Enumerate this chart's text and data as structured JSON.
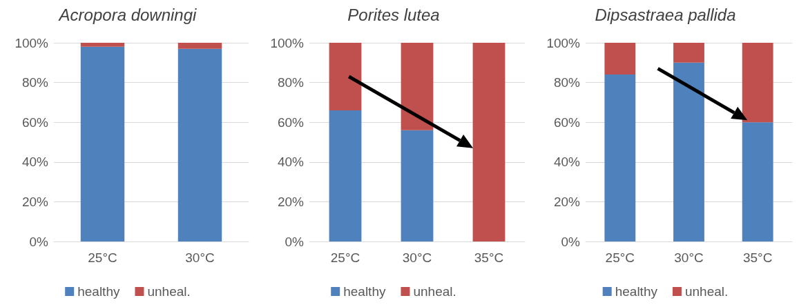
{
  "chart_data": [
    {
      "type": "bar",
      "title": "Acropora downingi",
      "stacked": true,
      "categories": [
        "25°C",
        "30°C"
      ],
      "series": [
        {
          "name": "healthy",
          "color": "#4f81bd",
          "values": [
            98,
            97
          ]
        },
        {
          "name": "unheal.",
          "color": "#c0504d",
          "values": [
            2,
            3
          ]
        }
      ],
      "ylim": [
        0,
        100
      ],
      "yticks": [
        {
          "value": 0,
          "label": "0%"
        },
        {
          "value": 20,
          "label": "20%"
        },
        {
          "value": 40,
          "label": "40%"
        },
        {
          "value": 60,
          "label": "60%"
        },
        {
          "value": 80,
          "label": "80%"
        },
        {
          "value": 100,
          "label": "100%"
        }
      ],
      "grid": "y",
      "legend": "bottom"
    },
    {
      "type": "bar",
      "title": "Porites lutea",
      "stacked": true,
      "categories": [
        "25°C",
        "30°C",
        "35°C"
      ],
      "series": [
        {
          "name": "healthy",
          "color": "#4f81bd",
          "values": [
            66,
            56,
            0
          ]
        },
        {
          "name": "unheal.",
          "color": "#c0504d",
          "values": [
            34,
            44,
            100
          ]
        }
      ],
      "ylim": [
        0,
        100
      ],
      "yticks": [
        {
          "value": 0,
          "label": "0%"
        },
        {
          "value": 20,
          "label": "20%"
        },
        {
          "value": 40,
          "label": "40%"
        },
        {
          "value": 60,
          "label": "60%"
        },
        {
          "value": 80,
          "label": "80%"
        },
        {
          "value": 100,
          "label": "100%"
        }
      ],
      "grid": "y",
      "legend": "bottom"
    },
    {
      "type": "bar",
      "title": "Dipsastraea pallida",
      "stacked": true,
      "categories": [
        "25°C",
        "30°C",
        "35°C"
      ],
      "series": [
        {
          "name": "healthy",
          "color": "#4f81bd",
          "values": [
            84,
            90,
            60
          ]
        },
        {
          "name": "unheal.",
          "color": "#c0504d",
          "values": [
            16,
            10,
            40
          ]
        }
      ],
      "ylim": [
        0,
        100
      ],
      "yticks": [
        {
          "value": 0,
          "label": "0%"
        },
        {
          "value": 20,
          "label": "20%"
        },
        {
          "value": 40,
          "label": "40%"
        },
        {
          "value": 60,
          "label": "60%"
        },
        {
          "value": 80,
          "label": "80%"
        },
        {
          "value": 100,
          "label": "100%"
        }
      ],
      "grid": "y",
      "legend": "bottom"
    }
  ]
}
